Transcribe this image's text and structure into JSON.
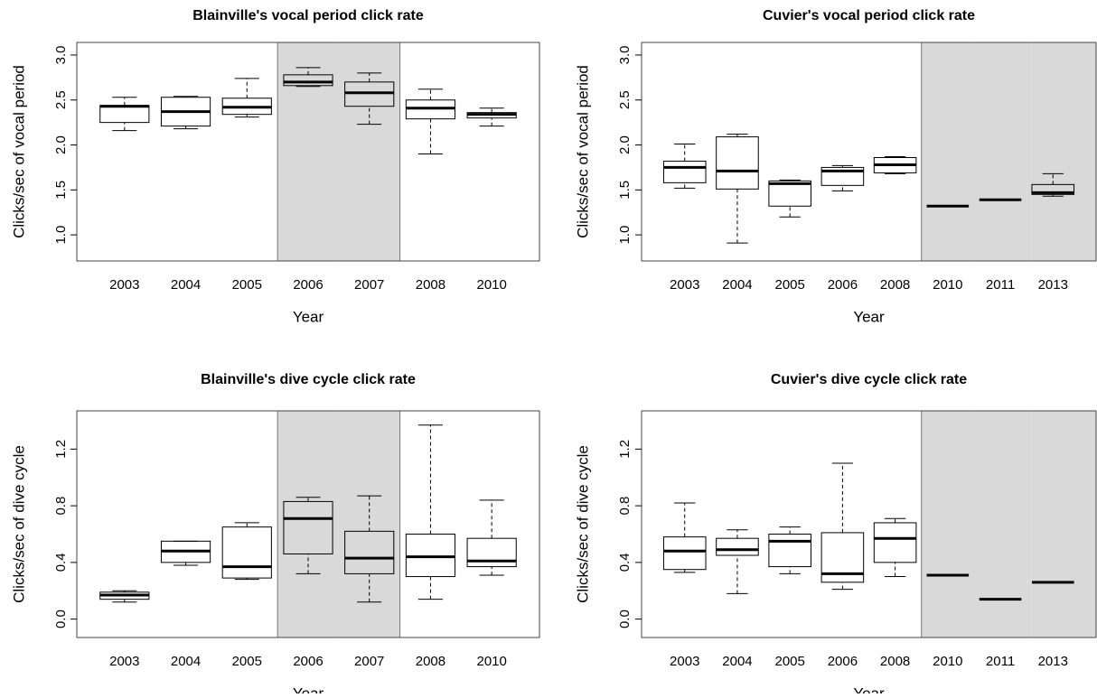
{
  "chart_data": [
    {
      "type": "box",
      "title": "Blainville's vocal period click rate",
      "x_label": "Year",
      "y_label": "Clicks/sec of vocal period",
      "categories": [
        "2003",
        "2004",
        "2005",
        "2006",
        "2007",
        "2008",
        "2010"
      ],
      "shaded": [
        false,
        false,
        false,
        true,
        true,
        false,
        false
      ],
      "shade_color": "#d9d9d9",
      "ylim": [
        0.71,
        3.14
      ],
      "yticks": [
        {
          "value": 1,
          "label": "1.0"
        },
        1.5,
        {
          "value": 2,
          "label": "2.0"
        },
        2.5,
        {
          "value": 3,
          "label": "3.0"
        }
      ],
      "boxes": [
        {
          "min": 2.16,
          "q1": 2.25,
          "median": 2.43,
          "q3": 2.44,
          "max": 2.53
        },
        {
          "min": 2.18,
          "q1": 2.21,
          "median": 2.37,
          "q3": 2.53,
          "max": 2.54
        },
        {
          "min": 2.31,
          "q1": 2.34,
          "median": 2.42,
          "q3": 2.52,
          "max": 2.74
        },
        {
          "min": 2.65,
          "q1": 2.66,
          "median": 2.7,
          "q3": 2.78,
          "max": 2.86
        },
        {
          "min": 2.23,
          "q1": 2.43,
          "median": 2.58,
          "q3": 2.7,
          "max": 2.8
        },
        {
          "min": 1.9,
          "q1": 2.29,
          "median": 2.41,
          "q3": 2.5,
          "max": 2.62
        },
        {
          "min": 2.21,
          "q1": 2.3,
          "median": 2.34,
          "q3": 2.36,
          "max": 2.41
        }
      ]
    },
    {
      "type": "box",
      "title": "Cuvier's vocal period click rate",
      "x_label": "Year",
      "y_label": "Clicks/sec of vocal period",
      "categories": [
        "2003",
        "2004",
        "2005",
        "2006",
        "2008",
        "2010",
        "2011",
        "2013"
      ],
      "shaded": [
        false,
        false,
        false,
        false,
        false,
        true,
        true,
        true
      ],
      "shade_color": "#d9d9d9",
      "ylim": [
        0.71,
        3.14
      ],
      "yticks": [
        {
          "value": 1,
          "label": "1.0"
        },
        1.5,
        {
          "value": 2,
          "label": "2.0"
        },
        2.5,
        {
          "value": 3,
          "label": "3.0"
        }
      ],
      "boxes": [
        {
          "min": 1.52,
          "q1": 1.58,
          "median": 1.75,
          "q3": 1.82,
          "max": 2.01
        },
        {
          "min": 0.91,
          "q1": 1.51,
          "median": 1.71,
          "q3": 2.09,
          "max": 2.12
        },
        {
          "min": 1.2,
          "q1": 1.32,
          "median": 1.57,
          "q3": 1.6,
          "max": 1.61
        },
        {
          "min": 1.49,
          "q1": 1.55,
          "median": 1.71,
          "q3": 1.75,
          "max": 1.77
        },
        {
          "min": 1.68,
          "q1": 1.69,
          "median": 1.78,
          "q3": 1.86,
          "max": 1.87
        },
        {
          "min": 1.32,
          "q1": 1.32,
          "median": 1.32,
          "q3": 1.32,
          "max": 1.32
        },
        {
          "min": 1.39,
          "q1": 1.39,
          "median": 1.39,
          "q3": 1.39,
          "max": 1.39
        },
        {
          "min": 1.43,
          "q1": 1.45,
          "median": 1.47,
          "q3": 1.56,
          "max": 1.68
        }
      ]
    },
    {
      "type": "box",
      "title": "Blainville's dive cycle click rate",
      "x_label": "Year",
      "y_label": "Clicks/sec of dive cycle",
      "categories": [
        "2003",
        "2004",
        "2005",
        "2006",
        "2007",
        "2008",
        "2010"
      ],
      "shaded": [
        false,
        false,
        false,
        true,
        true,
        false,
        false
      ],
      "shade_color": "#d9d9d9",
      "ylim": [
        -0.13,
        1.47
      ],
      "yticks": [
        {
          "value": 0,
          "label": "0.0"
        },
        0.4,
        0.8,
        1.2
      ],
      "boxes": [
        {
          "min": 0.12,
          "q1": 0.14,
          "median": 0.17,
          "q3": 0.19,
          "max": 0.2
        },
        {
          "min": 0.38,
          "q1": 0.4,
          "median": 0.48,
          "q3": 0.55,
          "max": 0.55
        },
        {
          "min": 0.28,
          "q1": 0.29,
          "median": 0.37,
          "q3": 0.65,
          "max": 0.68
        },
        {
          "min": 0.32,
          "q1": 0.46,
          "median": 0.71,
          "q3": 0.83,
          "max": 0.86
        },
        {
          "min": 0.12,
          "q1": 0.32,
          "median": 0.43,
          "q3": 0.62,
          "max": 0.87
        },
        {
          "min": 0.14,
          "q1": 0.3,
          "median": 0.44,
          "q3": 0.6,
          "max": 1.37
        },
        {
          "min": 0.31,
          "q1": 0.37,
          "median": 0.41,
          "q3": 0.57,
          "max": 0.84
        }
      ]
    },
    {
      "type": "box",
      "title": "Cuvier's dive cycle click rate",
      "x_label": "Year",
      "y_label": "Clicks/sec of dive cycle",
      "categories": [
        "2003",
        "2004",
        "2005",
        "2006",
        "2008",
        "2010",
        "2011",
        "2013"
      ],
      "shaded": [
        false,
        false,
        false,
        false,
        false,
        true,
        true,
        true
      ],
      "shade_color": "#d9d9d9",
      "ylim": [
        -0.13,
        1.47
      ],
      "yticks": [
        {
          "value": 0,
          "label": "0.0"
        },
        0.4,
        0.8,
        1.2
      ],
      "boxes": [
        {
          "min": 0.33,
          "q1": 0.35,
          "median": 0.48,
          "q3": 0.58,
          "max": 0.82
        },
        {
          "min": 0.18,
          "q1": 0.45,
          "median": 0.49,
          "q3": 0.57,
          "max": 0.63
        },
        {
          "min": 0.32,
          "q1": 0.37,
          "median": 0.55,
          "q3": 0.6,
          "max": 0.65
        },
        {
          "min": 0.21,
          "q1": 0.26,
          "median": 0.32,
          "q3": 0.61,
          "max": 1.1
        },
        {
          "min": 0.3,
          "q1": 0.4,
          "median": 0.57,
          "q3": 0.68,
          "max": 0.71
        },
        {
          "min": 0.31,
          "q1": 0.31,
          "median": 0.31,
          "q3": 0.31,
          "max": 0.31
        },
        {
          "min": 0.14,
          "q1": 0.14,
          "median": 0.14,
          "q3": 0.14,
          "max": 0.14
        },
        {
          "min": 0.26,
          "q1": 0.26,
          "median": 0.26,
          "q3": 0.26,
          "max": 0.26
        }
      ]
    }
  ]
}
